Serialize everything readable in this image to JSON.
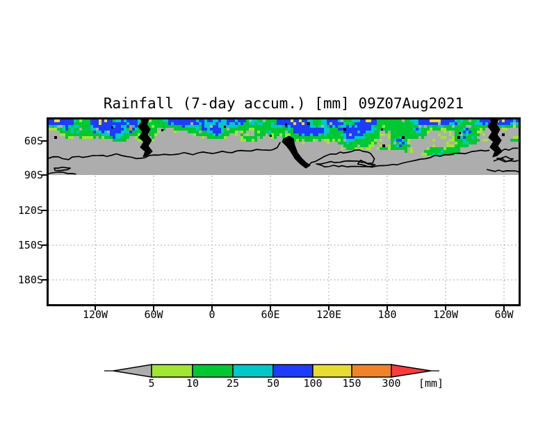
{
  "title": "Rainfall (7-day accum.) [mm] 09Z07Aug2021",
  "map": {
    "y_axis_labels": [
      "60S",
      "90S",
      "120S",
      "150S",
      "180S"
    ],
    "x_axis_labels": [
      "120W",
      "60W",
      "0",
      "60E",
      "120E",
      "180",
      "120W",
      "60W"
    ],
    "land_outline_color": "#000000",
    "background_field_color": "#adadad"
  },
  "legend": {
    "tick_labels": [
      "5",
      "10",
      "25",
      "50",
      "100",
      "150",
      "300"
    ],
    "unit_label": "[mm]",
    "below_min_color": "#adadad",
    "segment_colors": [
      "#a0e632",
      "#00c832",
      "#00c8c8",
      "#1e3cff",
      "#e6dc32",
      "#f08228"
    ],
    "above_max_color": "#fa3c3c"
  },
  "chart_data": {
    "type": "heatmap",
    "title": "Rainfall (7-day accum.) [mm] 09Z07Aug2021",
    "variable": "Rainfall, 7-day accumulation",
    "unit": "mm",
    "valid_label": "09Z07Aug2021",
    "x_ticks": [
      "120W",
      "60W",
      "0",
      "60E",
      "120E",
      "180",
      "120W",
      "60W"
    ],
    "y_ticks": [
      "60S",
      "90S",
      "120S",
      "150S",
      "180S"
    ],
    "color_scale": [
      {
        "color": "#adadad",
        "range": "< 5"
      },
      {
        "color": "#a0e632",
        "range": "5-10"
      },
      {
        "color": "#00c832",
        "range": "10-25"
      },
      {
        "color": "#00c8c8",
        "range": "25-50"
      },
      {
        "color": "#1e3cff",
        "range": "50-100"
      },
      {
        "color": "#e6dc32",
        "range": "100-150"
      },
      {
        "color": "#f08228",
        "range": "150-300"
      },
      {
        "color": "#fa3c3c",
        "range": "> 300"
      }
    ],
    "description": "Banded rainfall field (mostly 10-100 mm, locally 150-300 mm near southern South America) across the Southern Ocean around 55S-65S; field below 5 mm shown gray down to 90S; Antarctic coastline and the southern tips of South America drawn in black; area south of 90S blank with dotted graticule."
  }
}
